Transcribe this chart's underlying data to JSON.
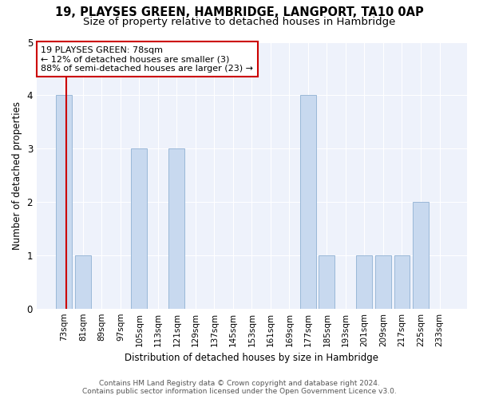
{
  "title1": "19, PLAYSES GREEN, HAMBRIDGE, LANGPORT, TA10 0AP",
  "title2": "Size of property relative to detached houses in Hambridge",
  "xlabel": "Distribution of detached houses by size in Hambridge",
  "ylabel": "Number of detached properties",
  "categories": [
    "73sqm",
    "81sqm",
    "89sqm",
    "97sqm",
    "105sqm",
    "113sqm",
    "121sqm",
    "129sqm",
    "137sqm",
    "145sqm",
    "153sqm",
    "161sqm",
    "169sqm",
    "177sqm",
    "185sqm",
    "193sqm",
    "201sqm",
    "209sqm",
    "217sqm",
    "225sqm",
    "233sqm"
  ],
  "values": [
    4,
    1,
    0,
    0,
    3,
    0,
    3,
    0,
    0,
    0,
    0,
    0,
    0,
    4,
    1,
    0,
    1,
    1,
    1,
    2,
    0
  ],
  "bar_color": "#c8d9ef",
  "bar_edge_color": "#9ab8d8",
  "property_label": "19 PLAYSES GREEN: 78sqm",
  "annotation_line1": "← 12% of detached houses are smaller (3)",
  "annotation_line2": "88% of semi-detached houses are larger (23) →",
  "annotation_box_color": "#ffffff",
  "annotation_box_edge": "#cc0000",
  "vline_color": "#cc0000",
  "vline_x": 0.625,
  "ylim": [
    0,
    5
  ],
  "yticks": [
    0,
    1,
    2,
    3,
    4,
    5
  ],
  "background_color": "#eef2fb",
  "footer1": "Contains HM Land Registry data © Crown copyright and database right 2024.",
  "footer2": "Contains public sector information licensed under the Open Government Licence v3.0.",
  "title1_fontsize": 10.5,
  "title2_fontsize": 9.5,
  "xlabel_fontsize": 8.5,
  "ylabel_fontsize": 8.5,
  "tick_fontsize": 7.5,
  "footer_fontsize": 6.5,
  "annotation_fontsize": 8.0
}
